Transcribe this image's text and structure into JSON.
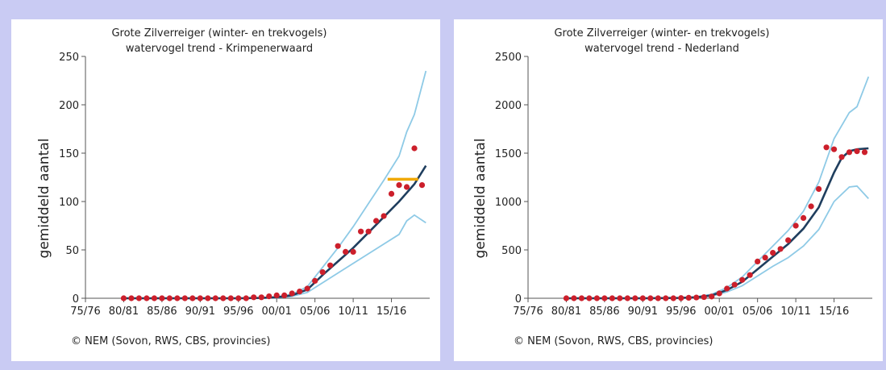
{
  "chart_data": [
    {
      "type": "line",
      "title": "Grote Zilverreiger (winter- en trekvogels)",
      "subtitle": "watervogel trend - Krimpenerwaard",
      "ylabel": "gemiddeld aantal",
      "credit": "© NEM (Sovon, RWS, CBS, provincies)",
      "ylim": [
        0,
        250
      ],
      "yticks": [
        "0",
        "50",
        "100",
        "150",
        "200",
        "250"
      ],
      "ytick_values": [
        0,
        50,
        100,
        150,
        200,
        250
      ],
      "xlim": [
        1975,
        2020
      ],
      "xticks": [
        "75/76",
        "80/81",
        "85/86",
        "90/91",
        "95/96",
        "00/01",
        "05/06",
        "10/11",
        "15/16"
      ],
      "xtick_values": [
        1975,
        1980,
        1985,
        1990,
        1995,
        2000,
        2005,
        2010,
        2015
      ],
      "colors": {
        "trend": "#1f3e5e",
        "band": "#8ecae6",
        "points": "#cc1f2b",
        "reference": "#f0a800"
      },
      "series": [
        {
          "role": "index_points",
          "x": [
            1980,
            1981,
            1982,
            1983,
            1984,
            1985,
            1986,
            1987,
            1988,
            1989,
            1990,
            1991,
            1992,
            1993,
            1994,
            1995,
            1996,
            1997,
            1998,
            1999,
            2000,
            2001,
            2002,
            2003,
            2004,
            2005,
            2006,
            2007,
            2008,
            2009,
            2010,
            2011,
            2012,
            2013,
            2014,
            2015,
            2016,
            2017,
            2018,
            2019
          ],
          "y": [
            0,
            0,
            0,
            0,
            0,
            0,
            0,
            0,
            0,
            0,
            0,
            0,
            0,
            0,
            0,
            0,
            0,
            1,
            1,
            2,
            3,
            3,
            5,
            7,
            10,
            18,
            27,
            34,
            54,
            48,
            48,
            69,
            69,
            80,
            85,
            108,
            117,
            115,
            155,
            117
          ]
        },
        {
          "role": "trend",
          "x": [
            1980,
            1985,
            1990,
            1995,
            1998,
            2000,
            2002,
            2004,
            2006,
            2008,
            2010,
            2012,
            2014,
            2016,
            2018,
            2019.5
          ],
          "y": [
            0,
            0,
            0,
            0,
            0.3,
            1,
            3,
            9,
            24,
            38,
            52,
            68,
            84,
            100,
            118,
            137
          ]
        },
        {
          "role": "upper_bound",
          "x": [
            1980,
            1985,
            1990,
            1995,
            1998,
            2000,
            2002,
            2004,
            2006,
            2008,
            2010,
            2012,
            2014,
            2016,
            2017,
            2018,
            2019.5
          ],
          "y": [
            0,
            0,
            0,
            0,
            0.5,
            1.5,
            4,
            12,
            32,
            52,
            74,
            98,
            122,
            147,
            172,
            190,
            235
          ]
        },
        {
          "role": "lower_bound",
          "x": [
            1980,
            1985,
            1990,
            1995,
            1998,
            2000,
            2002,
            2004,
            2006,
            2008,
            2010,
            2012,
            2014,
            2016,
            2017,
            2018,
            2019.5
          ],
          "y": [
            0,
            0,
            0,
            0,
            0.2,
            0.5,
            2,
            6,
            16,
            26,
            36,
            46,
            56,
            66,
            80,
            86,
            78
          ]
        },
        {
          "role": "reference",
          "x": [
            2014.5,
            2018.5
          ],
          "y": [
            123,
            123
          ]
        }
      ]
    },
    {
      "type": "line",
      "title": "Grote Zilverreiger (winter- en trekvogels)",
      "subtitle": "watervogel trend - Nederland",
      "ylabel": "gemiddeld aantal",
      "credit": "© NEM (Sovon, RWS, CBS, provincies)",
      "ylim": [
        0,
        2500
      ],
      "yticks": [
        "0",
        "500",
        "1000",
        "1500",
        "2000",
        "2500"
      ],
      "ytick_values": [
        0,
        500,
        1000,
        1500,
        2000,
        2500
      ],
      "xlim": [
        1975,
        2020
      ],
      "xticks": [
        "75/76",
        "80/81",
        "85/86",
        "90/91",
        "95/96",
        "00/01",
        "05/06",
        "10/11",
        "15/16"
      ],
      "xtick_values": [
        1975,
        1980,
        1985,
        1990,
        1995,
        2000,
        2005,
        2010,
        2015
      ],
      "colors": {
        "trend": "#1f3e5e",
        "band": "#8ecae6",
        "points": "#cc1f2b"
      },
      "series": [
        {
          "role": "index_points",
          "x": [
            1980,
            1981,
            1982,
            1983,
            1984,
            1985,
            1986,
            1987,
            1988,
            1989,
            1990,
            1991,
            1992,
            1993,
            1994,
            1995,
            1996,
            1997,
            1998,
            1999,
            2000,
            2001,
            2002,
            2003,
            2004,
            2005,
            2006,
            2007,
            2008,
            2009,
            2010,
            2011,
            2012,
            2013,
            2014,
            2015,
            2016,
            2017,
            2018,
            2019
          ],
          "y": [
            0,
            0,
            0,
            0,
            0,
            0,
            0,
            0,
            0,
            0,
            0,
            0,
            0,
            0,
            0,
            2,
            5,
            8,
            12,
            18,
            50,
            100,
            140,
            190,
            240,
            380,
            420,
            470,
            510,
            600,
            750,
            830,
            950,
            1130,
            1560,
            1540,
            1460,
            1510,
            1520,
            1510
          ]
        },
        {
          "role": "trend",
          "x": [
            1980,
            1985,
            1990,
            1995,
            1997,
            1999,
            2001,
            2003,
            2005,
            2007,
            2009,
            2011,
            2013,
            2015,
            2016,
            2017,
            2018,
            2019.5
          ],
          "y": [
            0,
            0,
            0,
            3,
            10,
            30,
            85,
            170,
            300,
            430,
            560,
            720,
            940,
            1300,
            1450,
            1520,
            1540,
            1550
          ]
        },
        {
          "role": "upper_bound",
          "x": [
            1980,
            1985,
            1990,
            1995,
            1997,
            1999,
            2001,
            2003,
            2005,
            2007,
            2009,
            2011,
            2013,
            2015,
            2017,
            2018,
            2019.5
          ],
          "y": [
            0,
            0,
            0,
            4,
            14,
            40,
            110,
            220,
            380,
            540,
            700,
            900,
            1200,
            1650,
            1920,
            1980,
            2290
          ]
        },
        {
          "role": "lower_bound",
          "x": [
            1980,
            1985,
            1990,
            1995,
            1997,
            1999,
            2001,
            2003,
            2005,
            2007,
            2009,
            2011,
            2013,
            2015,
            2017,
            2018,
            2019.5
          ],
          "y": [
            0,
            0,
            0,
            2,
            7,
            22,
            65,
            130,
            230,
            330,
            420,
            540,
            710,
            1000,
            1150,
            1160,
            1030
          ]
        }
      ]
    }
  ]
}
